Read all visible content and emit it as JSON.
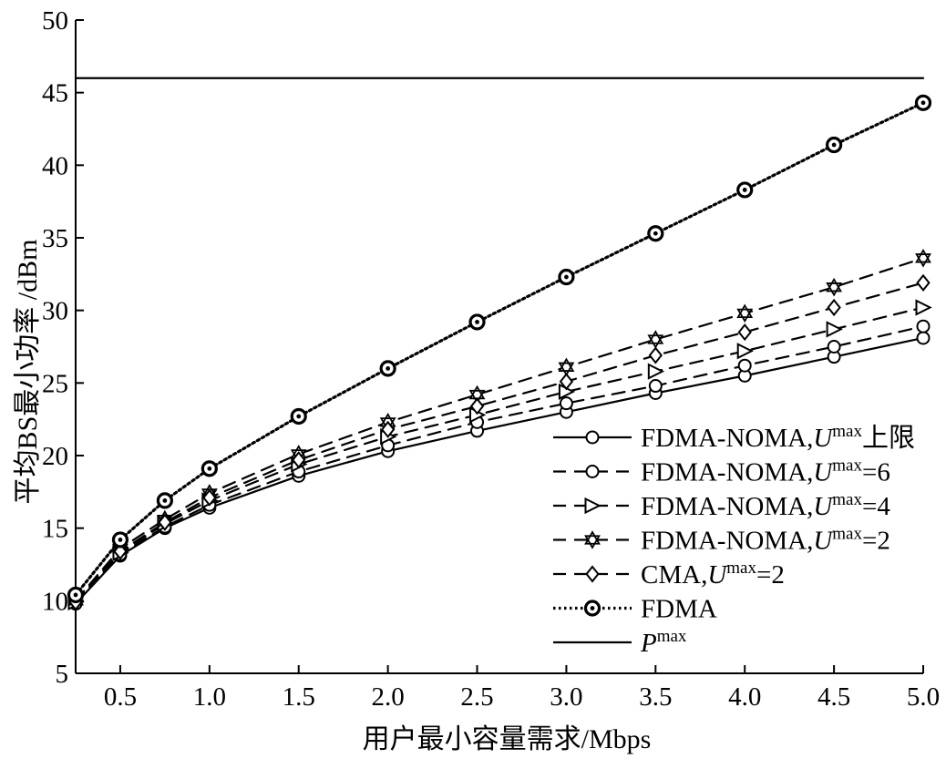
{
  "chart_data": {
    "type": "line",
    "title": "",
    "xlabel": "用户最小容量需求/Mbps",
    "ylabel": "平均BS最小功率 /dBm",
    "xlim": [
      0.25,
      5.0
    ],
    "ylim": [
      5,
      50
    ],
    "x_ticks": [
      0.5,
      1.0,
      1.5,
      2.0,
      2.5,
      3.0,
      3.5,
      4.0,
      4.5,
      5.0
    ],
    "x_tick_labels": [
      "0.5",
      "1.0",
      "1.5",
      "2.0",
      "2.5",
      "3.0",
      "3.5",
      "4.0",
      "4.5",
      "5.0"
    ],
    "y_ticks": [
      5,
      10,
      15,
      20,
      25,
      30,
      35,
      40,
      45,
      50
    ],
    "y_tick_labels": [
      "5",
      "10",
      "15",
      "20",
      "25",
      "30",
      "35",
      "40",
      "45",
      "50"
    ],
    "grid": false,
    "legend_position": "lower-right",
    "x": [
      0.25,
      0.5,
      0.75,
      1.0,
      1.5,
      2.0,
      2.5,
      3.0,
      3.5,
      4.0,
      4.5,
      5.0
    ],
    "series": [
      {
        "name": "FDMA-NOMA,U",
        "legend_sup": "max",
        "legend_suffix": "上限",
        "line": "solid",
        "marker": "circle",
        "values": [
          9.8,
          13.1,
          15.0,
          16.4,
          18.6,
          20.3,
          21.7,
          23.0,
          24.3,
          25.5,
          26.8,
          28.1
        ]
      },
      {
        "name": "FDMA-NOMA,U",
        "legend_sup": "max",
        "legend_suffix": "=6",
        "line": "dashed",
        "marker": "circle",
        "values": [
          9.8,
          13.2,
          15.1,
          16.6,
          18.9,
          20.7,
          22.3,
          23.6,
          24.8,
          26.2,
          27.5,
          28.9
        ]
      },
      {
        "name": "FDMA-NOMA,U",
        "legend_sup": "max",
        "legend_suffix": "=4",
        "line": "dashed",
        "marker": "triangle-right",
        "values": [
          9.9,
          13.3,
          15.3,
          16.9,
          19.4,
          21.3,
          22.8,
          24.4,
          25.8,
          27.2,
          28.7,
          30.2
        ]
      },
      {
        "name": "FDMA-NOMA,U",
        "legend_sup": "max",
        "legend_suffix": "=2",
        "line": "dashed",
        "marker": "hexagram",
        "values": [
          10.0,
          13.6,
          15.6,
          17.4,
          20.1,
          22.3,
          24.2,
          26.1,
          28.0,
          29.8,
          31.6,
          33.6
        ]
      },
      {
        "name": "CMA,U",
        "legend_sup": "max",
        "legend_suffix": "=2",
        "line": "dashed",
        "marker": "diamond",
        "values": [
          9.9,
          13.4,
          15.4,
          17.1,
          19.7,
          21.8,
          23.4,
          25.1,
          26.9,
          28.5,
          30.2,
          31.9
        ]
      },
      {
        "name": "FDMA",
        "legend_sup": "",
        "legend_suffix": "",
        "line": "dotted",
        "marker": "circle-dot",
        "values": [
          10.4,
          14.2,
          16.9,
          19.1,
          22.7,
          26.0,
          29.2,
          32.3,
          35.3,
          38.3,
          41.4,
          44.3
        ]
      },
      {
        "name": "P",
        "legend_sup": "max",
        "legend_suffix": "",
        "line": "solid",
        "marker": "none",
        "values": [
          46.0,
          46.0,
          46.0,
          46.0,
          46.0,
          46.0,
          46.0,
          46.0,
          46.0,
          46.0,
          46.0,
          46.0
        ]
      }
    ]
  }
}
